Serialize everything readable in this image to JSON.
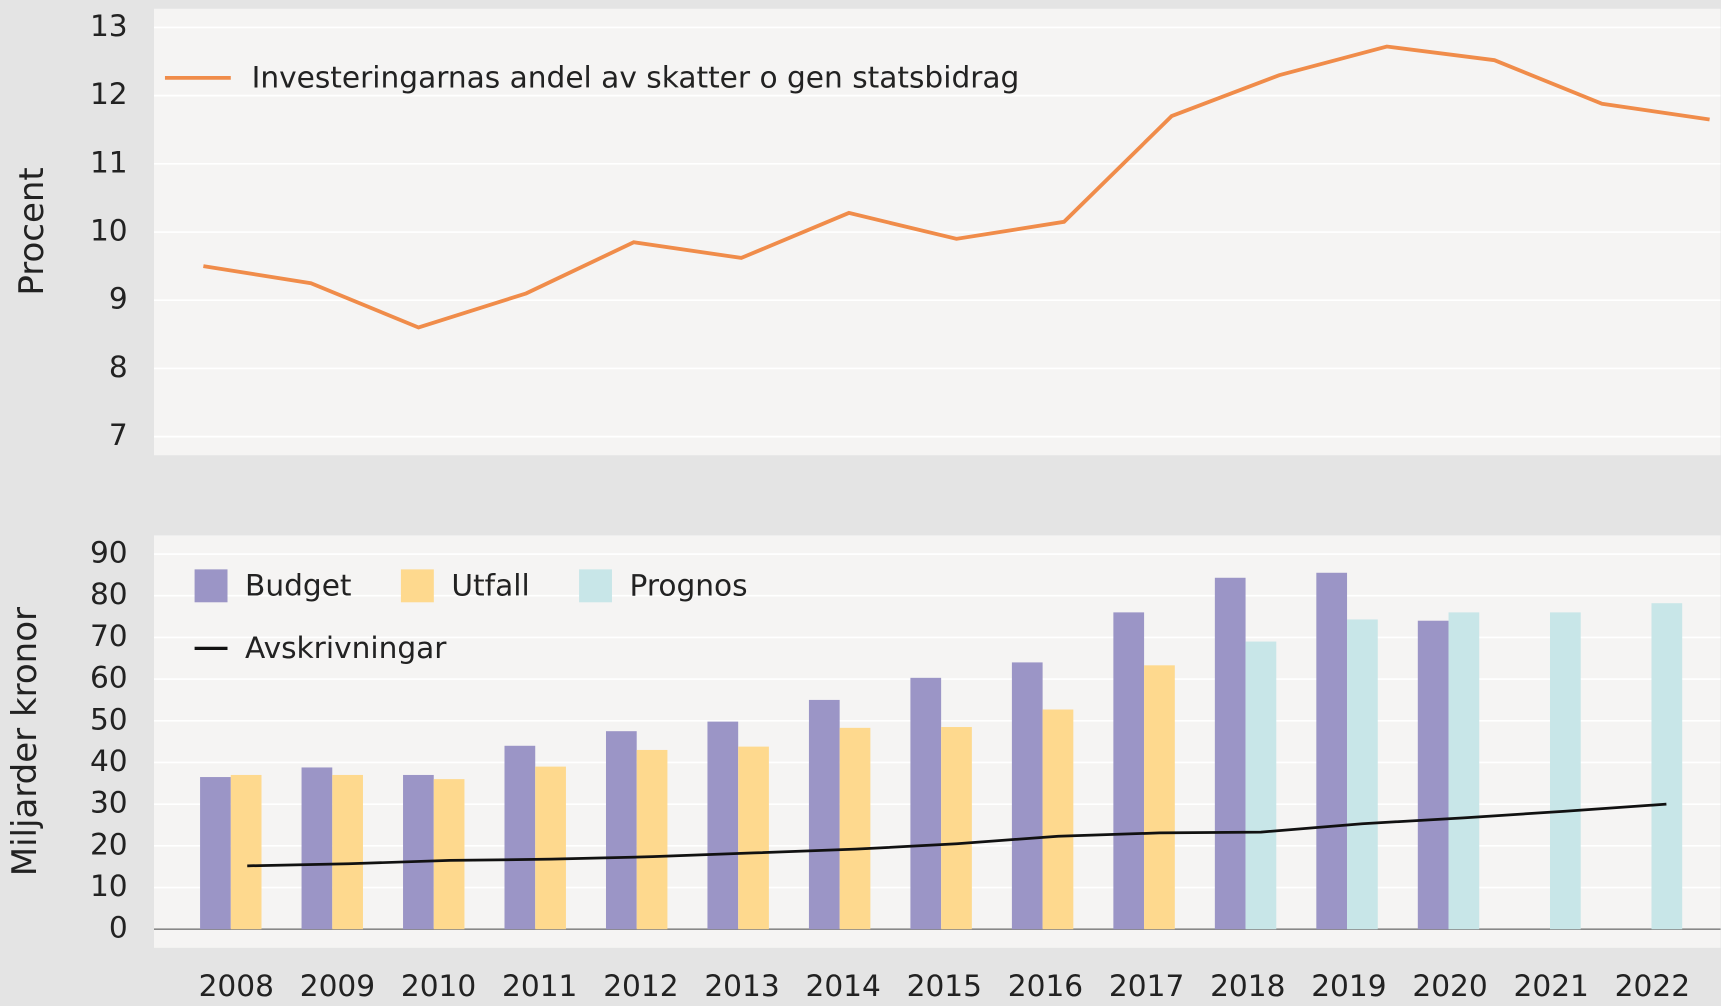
{
  "chart_data": [
    {
      "type": "line",
      "ylabel": "Procent",
      "ylim": [
        7,
        13
      ],
      "yticks": [
        7,
        8,
        9,
        10,
        11,
        12,
        13
      ],
      "grid": true,
      "series": [
        {
          "name": "Investeringarnas andel av skatter o gen statsbidrag",
          "color": "#f08c4a",
          "values": [
            9.5,
            9.25,
            8.6,
            9.1,
            9.85,
            9.62,
            10.28,
            9.9,
            10.15,
            11.7,
            12.3,
            12.72,
            12.52,
            11.88,
            11.65
          ]
        }
      ]
    },
    {
      "type": "bar",
      "ylabel": "Miljarder kronor",
      "ylim": [
        0,
        90
      ],
      "yticks": [
        0,
        10,
        20,
        30,
        40,
        50,
        60,
        70,
        80,
        90
      ],
      "grid": true,
      "categories": [
        "2008",
        "2009",
        "2010",
        "2011",
        "2012",
        "2013",
        "2014",
        "2015",
        "2016",
        "2017",
        "2018",
        "2019",
        "2020",
        "2021",
        "2022"
      ],
      "series": [
        {
          "name": "Budget",
          "color": "#9b95c6",
          "values": [
            36.5,
            38.8,
            37,
            44,
            47.5,
            49.8,
            55,
            60.3,
            64,
            76,
            84.3,
            85.5,
            74,
            null,
            null
          ]
        },
        {
          "name": "Utfall",
          "color": "#fed98e",
          "values": [
            37,
            37,
            36,
            39,
            43,
            43.8,
            48.3,
            48.5,
            52.7,
            63.3,
            null,
            null,
            null,
            null,
            null
          ]
        },
        {
          "name": "Prognos",
          "color": "#c8e6e8",
          "values": [
            null,
            null,
            null,
            null,
            null,
            null,
            null,
            null,
            null,
            null,
            69,
            74.3,
            76,
            76,
            78.2
          ]
        },
        {
          "name": "Avskrivningar",
          "type": "line",
          "color": "#111111",
          "values": [
            15.2,
            15.7,
            16.5,
            16.8,
            17.4,
            18.3,
            19.2,
            20.5,
            22.3,
            23.1,
            23.3,
            25.3,
            26.7,
            28.3,
            30
          ]
        }
      ]
    }
  ]
}
